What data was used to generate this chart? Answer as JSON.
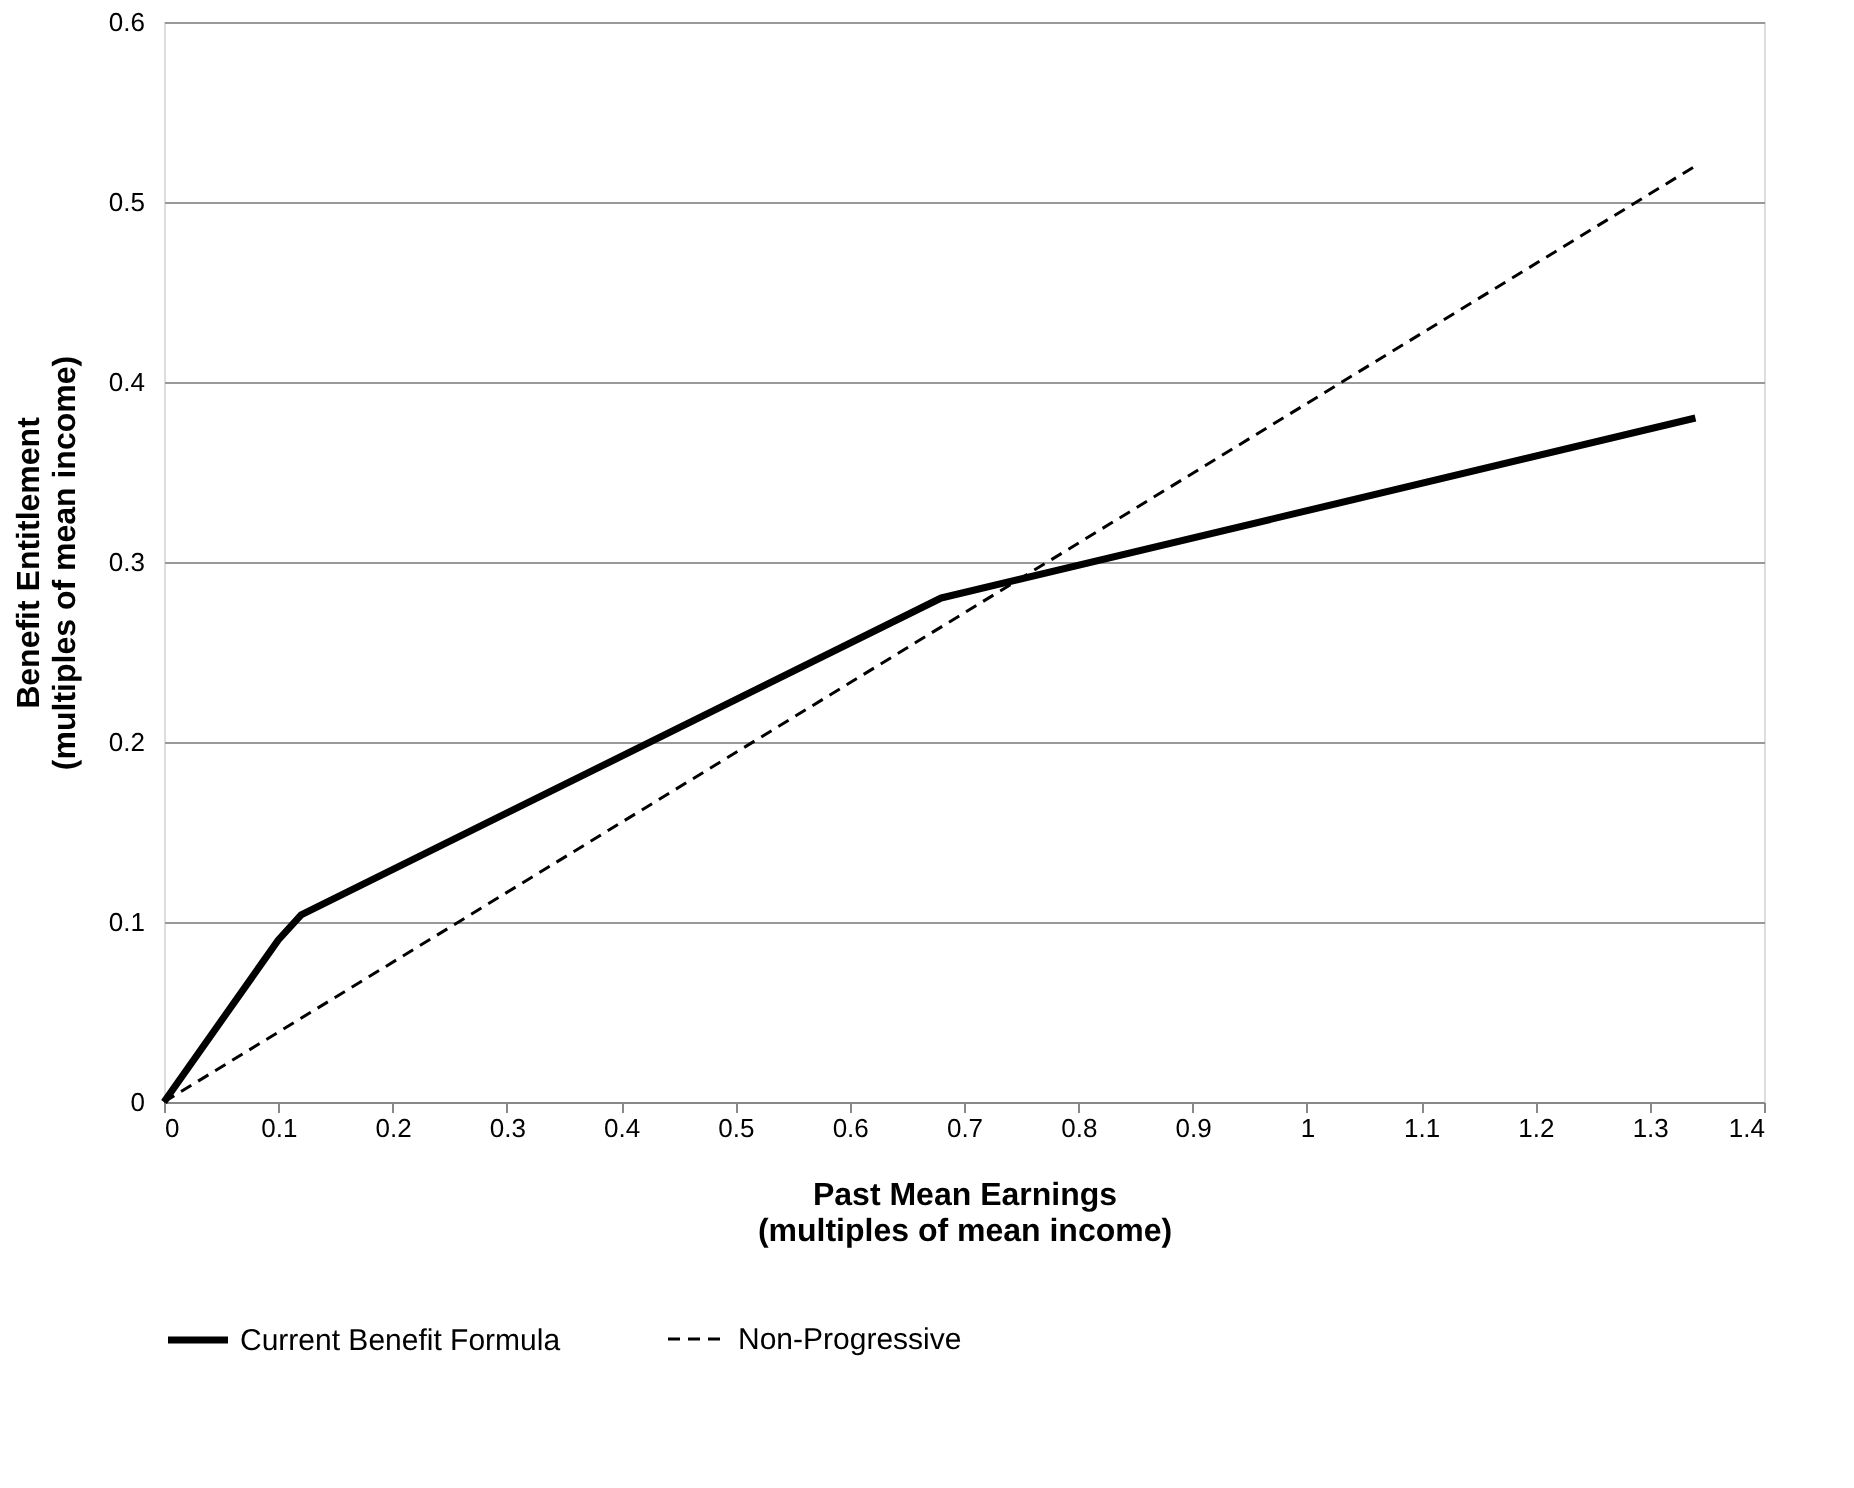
{
  "chart_data": {
    "type": "line",
    "xlabel": "Past Mean Earnings\n(multiples of mean income)",
    "ylabel": "Benefit Entitlement\n(multiples of mean income)",
    "xlim": [
      0,
      1.4
    ],
    "xticks": [
      0,
      0.1,
      0.2,
      0.3,
      0.4,
      0.5,
      0.6,
      0.7,
      0.8,
      0.9,
      1,
      1.1,
      1.2,
      1.3,
      1.4
    ],
    "ylim": [
      0,
      0.6
    ],
    "yticks": [
      0,
      0.1,
      0.2,
      0.3,
      0.4,
      0.5,
      0.6
    ],
    "grid": "y",
    "legend": "bottom",
    "marker": "none",
    "series": [
      {
        "name": "Current Benefit Formula",
        "color": "#000000",
        "line_style": "solid",
        "x": [
          0,
          0.1,
          0.12,
          0.68,
          1.34
        ],
        "values": [
          0,
          0.09,
          0.104,
          0.28,
          0.38
        ]
      },
      {
        "name": "Non-Progressive",
        "color": "#000000",
        "line_style": "dashed",
        "x": [
          0,
          1.34
        ],
        "values": [
          0,
          0.52
        ]
      }
    ]
  }
}
